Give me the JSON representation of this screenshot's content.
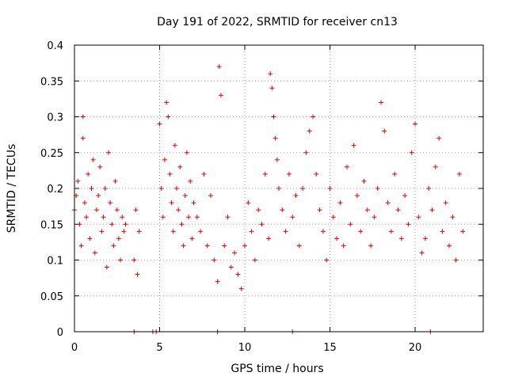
{
  "chart_data": {
    "type": "scatter",
    "title": "Day 191 of 2022, SRMTID for receiver cn13",
    "xlabel": "GPS time / hours",
    "ylabel": "SRMTID / TECUs",
    "xlim": [
      0,
      24
    ],
    "ylim": [
      0,
      0.4
    ],
    "xticks": [
      0,
      5,
      10,
      15,
      20
    ],
    "xtick_labels": [
      "0",
      "5",
      "10",
      "15",
      "20"
    ],
    "yticks": [
      0,
      0.05,
      0.1,
      0.15,
      0.2,
      0.25,
      0.3,
      0.35,
      0.4
    ],
    "ytick_labels": [
      "0",
      "0.05",
      "0.1",
      "0.15",
      "0.2",
      "0.25",
      "0.3",
      "0.35",
      "0.4"
    ],
    "grid": true,
    "legend": "none",
    "marker": "+",
    "marker_color": "#e00000",
    "series": [
      {
        "name": "SRMTID",
        "x": [
          0.0,
          0.1,
          0.2,
          0.3,
          0.4,
          0.5,
          0.5,
          0.6,
          0.7,
          0.8,
          0.9,
          1.0,
          1.1,
          1.2,
          1.3,
          1.4,
          1.5,
          1.6,
          1.7,
          1.8,
          1.9,
          2.0,
          2.1,
          2.2,
          2.3,
          2.4,
          2.5,
          2.6,
          2.7,
          2.8,
          2.9,
          3.0,
          3.5,
          3.6,
          3.7,
          3.8,
          5.0,
          5.1,
          5.2,
          5.3,
          5.4,
          5.5,
          5.6,
          5.7,
          5.8,
          5.9,
          6.0,
          6.1,
          6.2,
          6.3,
          6.4,
          6.5,
          6.6,
          6.7,
          6.8,
          6.9,
          7.0,
          7.2,
          7.4,
          7.6,
          7.8,
          8.0,
          8.2,
          8.4,
          8.5,
          8.6,
          8.8,
          9.0,
          9.2,
          9.4,
          9.6,
          9.8,
          10.0,
          10.2,
          10.4,
          10.6,
          10.8,
          11.0,
          11.2,
          11.4,
          11.5,
          11.6,
          11.7,
          11.8,
          11.9,
          12.0,
          12.2,
          12.4,
          12.6,
          12.8,
          13.0,
          13.2,
          13.4,
          13.6,
          13.8,
          14.0,
          14.2,
          14.4,
          14.6,
          14.8,
          15.0,
          15.2,
          15.4,
          15.6,
          15.8,
          16.0,
          16.2,
          16.4,
          16.6,
          16.8,
          17.0,
          17.2,
          17.4,
          17.6,
          17.8,
          18.0,
          18.2,
          18.4,
          18.6,
          18.8,
          19.0,
          19.2,
          19.4,
          19.6,
          19.8,
          20.0,
          20.2,
          20.4,
          20.6,
          20.8,
          21.0,
          21.2,
          21.4,
          21.6,
          21.8,
          22.0,
          22.2,
          22.4,
          22.6,
          22.8,
          3.5,
          4.6,
          4.8,
          8.4,
          12.8,
          20.9
        ],
        "y": [
          0.17,
          0.19,
          0.21,
          0.15,
          0.12,
          0.3,
          0.27,
          0.18,
          0.16,
          0.22,
          0.13,
          0.2,
          0.24,
          0.11,
          0.17,
          0.19,
          0.23,
          0.14,
          0.16,
          0.2,
          0.09,
          0.25,
          0.18,
          0.15,
          0.12,
          0.21,
          0.17,
          0.13,
          0.1,
          0.16,
          0.14,
          0.15,
          0.1,
          0.17,
          0.08,
          0.14,
          0.29,
          0.2,
          0.16,
          0.24,
          0.32,
          0.3,
          0.22,
          0.18,
          0.14,
          0.26,
          0.2,
          0.17,
          0.23,
          0.15,
          0.12,
          0.19,
          0.25,
          0.16,
          0.21,
          0.13,
          0.18,
          0.16,
          0.14,
          0.22,
          0.12,
          0.19,
          0.1,
          0.07,
          0.37,
          0.33,
          0.12,
          0.16,
          0.09,
          0.11,
          0.08,
          0.06,
          0.12,
          0.18,
          0.14,
          0.1,
          0.17,
          0.15,
          0.22,
          0.13,
          0.36,
          0.34,
          0.3,
          0.27,
          0.24,
          0.2,
          0.17,
          0.14,
          0.22,
          0.16,
          0.19,
          0.12,
          0.2,
          0.25,
          0.28,
          0.3,
          0.22,
          0.17,
          0.14,
          0.1,
          0.2,
          0.16,
          0.13,
          0.18,
          0.12,
          0.23,
          0.15,
          0.26,
          0.19,
          0.14,
          0.21,
          0.17,
          0.12,
          0.16,
          0.2,
          0.32,
          0.28,
          0.18,
          0.14,
          0.22,
          0.17,
          0.13,
          0.19,
          0.15,
          0.25,
          0.29,
          0.16,
          0.11,
          0.13,
          0.2,
          0.17,
          0.23,
          0.27,
          0.14,
          0.18,
          0.12,
          0.16,
          0.1,
          0.22,
          0.14,
          0.0,
          0.0,
          0.0,
          0.0,
          0.0,
          0.0
        ]
      }
    ]
  }
}
